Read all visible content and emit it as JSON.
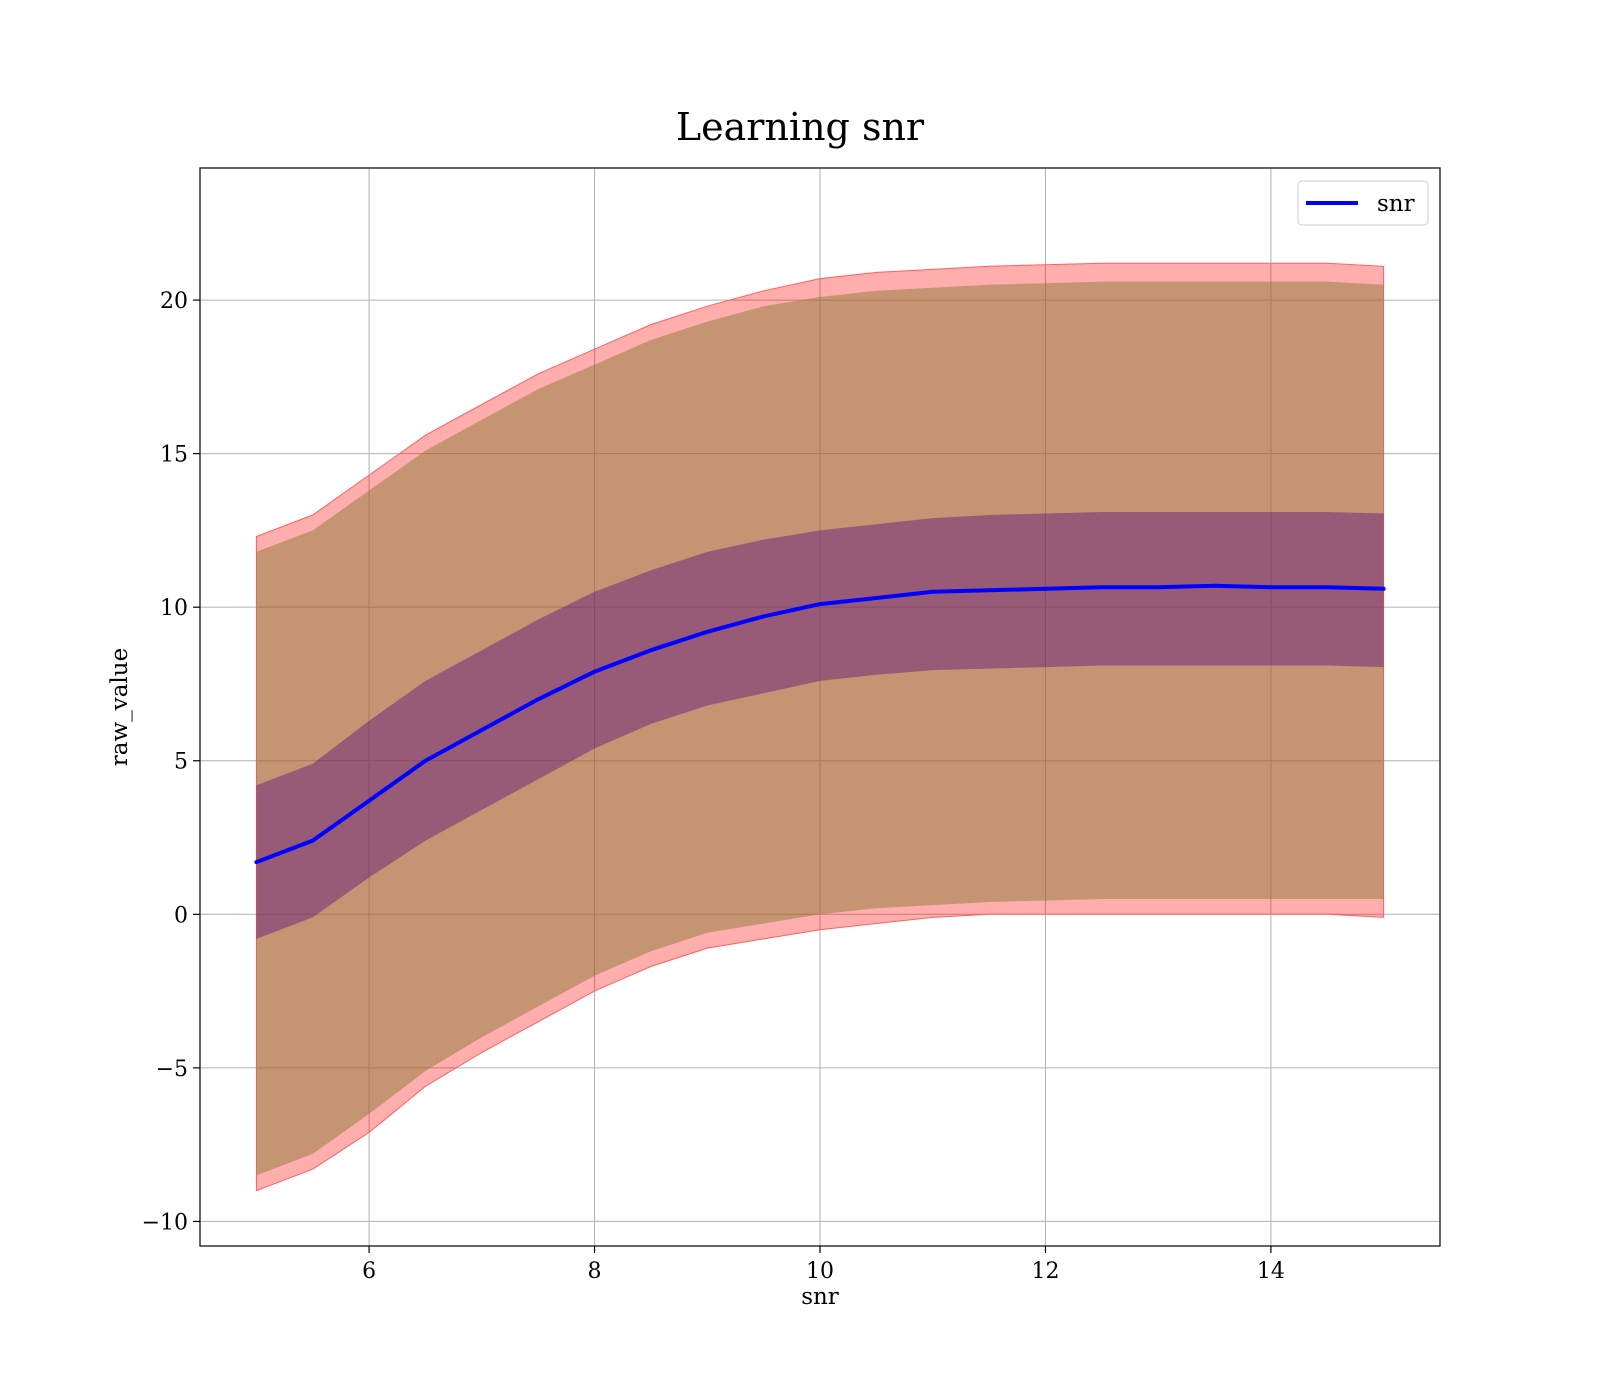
{
  "chart_data": {
    "type": "line",
    "title": "Learning snr",
    "xlabel": "snr",
    "ylabel": "raw_value",
    "xlim": [
      4.5,
      15.5
    ],
    "ylim": [
      -10.8,
      24.3
    ],
    "xticks": [
      6,
      8,
      10,
      12,
      14
    ],
    "yticks": [
      -10,
      -5,
      0,
      5,
      10,
      15,
      20
    ],
    "xtick_labels": [
      "6",
      "8",
      "10",
      "12",
      "14"
    ],
    "ytick_labels": [
      "−10",
      "−5",
      "0",
      "5",
      "10",
      "15",
      "20"
    ],
    "grid": true,
    "legend": {
      "position": "top-right",
      "entries": [
        "snr"
      ]
    },
    "colors": {
      "line": "#0000ff",
      "outer_band": "#ff0000",
      "outer_band_edge": "#ff6060",
      "middle_band": "#8b7b3a",
      "inner_band": "#4b0082"
    },
    "x": [
      5.0,
      5.5,
      6.0,
      6.5,
      7.0,
      7.5,
      8.0,
      8.5,
      9.0,
      9.5,
      10.0,
      10.5,
      11.0,
      11.5,
      12.0,
      12.5,
      13.0,
      13.5,
      14.0,
      14.5,
      15.0
    ],
    "series": [
      {
        "name": "snr",
        "values": [
          1.7,
          2.4,
          3.7,
          5.0,
          6.0,
          7.0,
          7.9,
          8.6,
          9.2,
          9.7,
          10.1,
          10.3,
          10.5,
          10.55,
          10.6,
          10.65,
          10.65,
          10.7,
          10.65,
          10.65,
          10.6
        ]
      }
    ],
    "bands": [
      {
        "level": "outer",
        "upper": [
          12.3,
          13.0,
          14.3,
          15.6,
          16.6,
          17.6,
          18.4,
          19.2,
          19.8,
          20.3,
          20.7,
          20.9,
          21.0,
          21.1,
          21.15,
          21.2,
          21.2,
          21.2,
          21.2,
          21.2,
          21.1
        ],
        "lower": [
          -9.0,
          -8.3,
          -7.1,
          -5.6,
          -4.5,
          -3.5,
          -2.5,
          -1.7,
          -1.1,
          -0.8,
          -0.5,
          -0.3,
          -0.1,
          0.0,
          0.0,
          0.0,
          0.0,
          0.0,
          0.0,
          0.0,
          -0.1
        ]
      },
      {
        "level": "middle",
        "upper": [
          11.8,
          12.5,
          13.8,
          15.1,
          16.1,
          17.1,
          17.9,
          18.7,
          19.3,
          19.8,
          20.1,
          20.3,
          20.4,
          20.5,
          20.55,
          20.6,
          20.6,
          20.6,
          20.6,
          20.6,
          20.5
        ],
        "lower": [
          -8.5,
          -7.8,
          -6.5,
          -5.1,
          -4.0,
          -3.0,
          -2.0,
          -1.2,
          -0.6,
          -0.3,
          0.0,
          0.2,
          0.3,
          0.4,
          0.45,
          0.5,
          0.5,
          0.5,
          0.5,
          0.5,
          0.5
        ]
      },
      {
        "level": "inner",
        "upper": [
          4.2,
          4.9,
          6.3,
          7.6,
          8.6,
          9.6,
          10.5,
          11.2,
          11.8,
          12.2,
          12.5,
          12.7,
          12.9,
          13.0,
          13.05,
          13.1,
          13.1,
          13.1,
          13.1,
          13.1,
          13.05
        ],
        "lower": [
          -0.8,
          -0.1,
          1.2,
          2.4,
          3.4,
          4.4,
          5.4,
          6.2,
          6.8,
          7.2,
          7.6,
          7.8,
          7.95,
          8.0,
          8.05,
          8.1,
          8.1,
          8.1,
          8.1,
          8.1,
          8.05
        ]
      }
    ]
  }
}
